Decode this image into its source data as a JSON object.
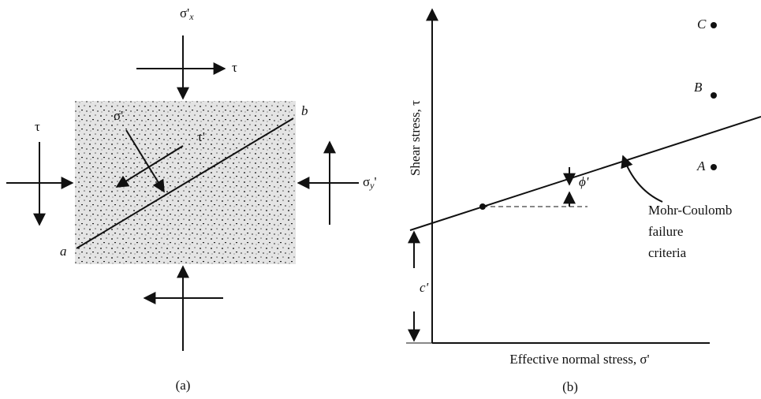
{
  "panel_a": {
    "top_label": {
      "symbol": "σ'",
      "subscript": "x"
    },
    "top_shear": "τ",
    "left_shear": "τ",
    "right_label": {
      "symbol": "σ",
      "subscript": "y",
      "prime": "'"
    },
    "plane_normal": "σ'",
    "plane_shear": "τ'",
    "end_a": "a",
    "end_b": "b",
    "caption": "(a)"
  },
  "panel_b": {
    "y_axis_label": "Shear stress, τ",
    "x_axis_label": "Effective normal stress, σ'",
    "point_c": "C",
    "point_b": "B",
    "point_a": "A",
    "angle_label": "ϕ'",
    "envelope_label": [
      "Mohr-Coulomb",
      "failure",
      "criteria"
    ],
    "intercept_label": "c'",
    "caption": "(b)"
  }
}
